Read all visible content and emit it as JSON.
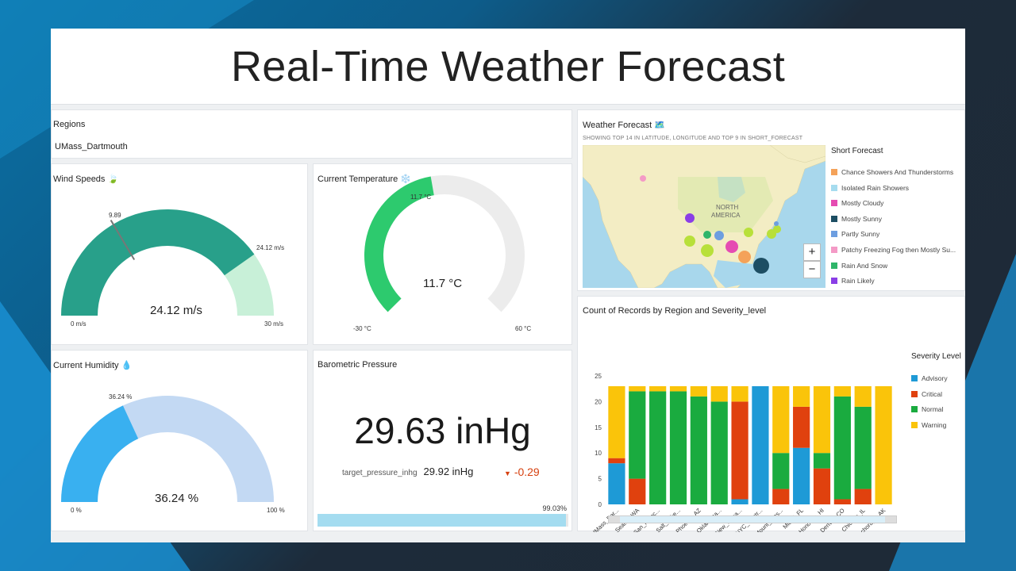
{
  "title": "Real-Time Weather Forecast",
  "regions": {
    "label": "Regions",
    "value": "UMass_Dartmouth"
  },
  "wind": {
    "title": "Wind Speeds",
    "icon": "wind-icon",
    "emoji": "🍃",
    "value_text": "24.12 m/s",
    "value": 24.12,
    "min": 0,
    "max": 30,
    "min_label": "0 m/s",
    "max_label": "30 m/s",
    "value_label": "24.12 m/s",
    "target": 9.89,
    "target_label": "9.89"
  },
  "temp": {
    "title": "Current Temperature",
    "icon": "snowflake-icon",
    "emoji": "❄️",
    "value_text": "11.7 °C",
    "value": 11.7,
    "min": -30,
    "max": 60,
    "min_label": "-30 °C",
    "max_label": "60 °C",
    "value_label": "11.7 °C"
  },
  "humidity": {
    "title": "Current Humidity",
    "icon": "droplet-icon",
    "emoji": "💧",
    "value_text": "36.24 %",
    "value": 36.24,
    "min": 0,
    "max": 100,
    "min_label": "0 %",
    "max_label": "100 %",
    "value_label": "36.24 %"
  },
  "pressure": {
    "title": "Barometric Pressure",
    "value_text": "29.63 inHg",
    "target_label": "target_pressure_inhg",
    "target_value": "29.92 inHg",
    "delta": "-0.29",
    "progress_label": "99.03%",
    "progress": 0.9903
  },
  "map": {
    "title": "Weather Forecast",
    "emoji": "🗺️",
    "subtitle": "SHOWING TOP 14 IN LATITUDE, LONGITUDE AND TOP 9 IN SHORT_FORECAST",
    "region_label": "NORTH",
    "region_label2": "AMERICA",
    "zoom_in": "+",
    "zoom_out": "−",
    "legend_title": "Short Forecast",
    "legend": [
      {
        "label": "Chance Showers And Thunderstorms",
        "color": "#f4a259"
      },
      {
        "label": "Isolated Rain Showers",
        "color": "#a6dcef"
      },
      {
        "label": "Mostly Cloudy",
        "color": "#e54cb2"
      },
      {
        "label": "Mostly Sunny",
        "color": "#1d4e63"
      },
      {
        "label": "Partly Sunny",
        "color": "#6d9ee0"
      },
      {
        "label": "Patchy Freezing Fog then Mostly Su...",
        "color": "#f49ac6"
      },
      {
        "label": "Rain And Snow",
        "color": "#2fb56a"
      },
      {
        "label": "Rain Likely",
        "color": "#8a3ee6"
      }
    ]
  },
  "chart_data": {
    "type": "bar",
    "title": "Count of Records by Region and Severity_level",
    "legend_title": "Severity Level",
    "categories": [
      "UMass_Dar...",
      "Seattle_WA",
      "San_Franc...",
      "Salt_Lake...",
      "Phoenix_AZ",
      "Oklahoma...",
      "New_Orlea...",
      "NYC_Centr...",
      "Mount_Was...",
      "Miami_FL",
      "Honolulu_HI",
      "Denver_CO",
      "Chicago_IL",
      "Anchorage_AK"
    ],
    "ylim": [
      0,
      25
    ],
    "yticks": [
      0,
      5,
      10,
      15,
      20,
      25
    ],
    "series": [
      {
        "name": "Advisory",
        "color": "#1e9ad6",
        "values": [
          8,
          0,
          0,
          0,
          0,
          0,
          1,
          23,
          0,
          11,
          0,
          0,
          0,
          0
        ]
      },
      {
        "name": "Critical",
        "color": "#e0410e",
        "values": [
          1,
          5,
          0,
          0,
          0,
          0,
          19,
          0,
          3,
          8,
          7,
          1,
          3,
          0
        ]
      },
      {
        "name": "Normal",
        "color": "#1aab3f",
        "values": [
          0,
          17,
          22,
          22,
          21,
          20,
          0,
          0,
          7,
          0,
          3,
          20,
          16,
          0
        ]
      },
      {
        "name": "Warning",
        "color": "#fac40a",
        "values": [
          14,
          1,
          1,
          1,
          2,
          3,
          3,
          0,
          13,
          4,
          13,
          2,
          4,
          23
        ]
      }
    ]
  }
}
